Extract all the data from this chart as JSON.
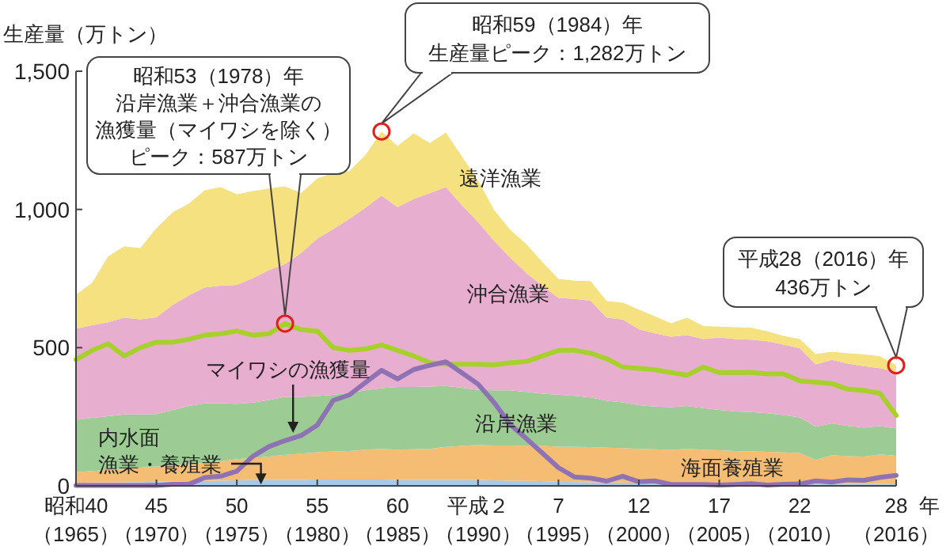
{
  "chart_data": {
    "type": "area",
    "stacked": true,
    "ylabel": "生産量（万トン）",
    "xlabel": "年",
    "categories": [
      "昭和40（1965）",
      null,
      null,
      null,
      null,
      "45（1970）",
      null,
      null,
      null,
      null,
      "50（1975）",
      null,
      null,
      null,
      null,
      "55（1980）",
      null,
      null,
      null,
      null,
      "60（1985）",
      null,
      null,
      null,
      null,
      "平成２（1990）",
      null,
      null,
      null,
      null,
      "7（1995）",
      null,
      null,
      null,
      null,
      "12（2000）",
      null,
      null,
      null,
      null,
      "17（2005）",
      null,
      null,
      null,
      null,
      "22（2010）",
      null,
      null,
      null,
      null,
      null,
      "28（2016）"
    ],
    "series": [
      {
        "name": "内水面漁業・養殖業",
        "color": "#a9c8e6",
        "values": [
          11,
          12,
          12,
          13,
          14,
          15,
          16,
          17,
          18,
          19,
          20,
          21,
          21,
          22,
          22,
          23,
          23,
          23,
          23,
          23,
          22,
          22,
          22,
          21,
          21,
          21,
          20,
          19,
          18,
          17,
          15,
          14,
          13,
          12,
          12,
          11,
          10,
          9,
          9,
          9,
          8,
          8,
          8,
          8,
          8,
          8,
          7,
          7,
          7,
          7,
          7,
          6
        ]
      },
      {
        "name": "海面養殖業",
        "color": "#f5bc74",
        "values": [
          38,
          42,
          45,
          50,
          52,
          55,
          58,
          62,
          65,
          70,
          77,
          80,
          85,
          90,
          95,
          99,
          101,
          103,
          108,
          111,
          109,
          110,
          112,
          120,
          124,
          127,
          126,
          127,
          127,
          127,
          127,
          127,
          127,
          126,
          125,
          123,
          122,
          121,
          125,
          122,
          121,
          118,
          117,
          115,
          113,
          111,
          87,
          104,
          100,
          99,
          107,
          103
        ]
      },
      {
        "name": "沿岸漁業",
        "color": "#9ccc93",
        "values": [
          190,
          192,
          195,
          195,
          192,
          190,
          200,
          210,
          215,
          210,
          200,
          200,
          205,
          210,
          205,
          203,
          205,
          210,
          215,
          220,
          227,
          226,
          225,
          220,
          210,
          199,
          200,
          200,
          195,
          190,
          188,
          185,
          180,
          170,
          165,
          158,
          155,
          155,
          155,
          150,
          146,
          143,
          142,
          140,
          135,
          129,
          120,
          115,
          110,
          105,
          102,
          99
        ]
      },
      {
        "name": "沖合漁業",
        "color": "#e8aecf",
        "values": [
          330,
          335,
          340,
          350,
          345,
          350,
          380,
          400,
          420,
          425,
          430,
          450,
          470,
          480,
          520,
          570,
          600,
          630,
          660,
          696,
          650,
          680,
          700,
          720,
          660,
          608,
          540,
          480,
          430,
          390,
          350,
          350,
          350,
          300,
          300,
          275,
          265,
          255,
          256,
          250,
          262,
          262,
          262,
          260,
          255,
          250,
          225,
          230,
          225,
          222,
          210,
          205
        ]
      },
      {
        "name": "遠洋漁業",
        "color": "#f5e17f",
        "values": [
          122,
          154,
          238,
          259,
          257,
          322,
          335,
          332,
          351,
          357,
          328,
          315,
          295,
          281,
          217,
          217,
          203,
          173,
          191,
          232,
          222,
          237,
          181,
          197,
          176,
          150,
          112,
          101,
          104,
          86,
          69,
          66,
          71,
          60,
          61,
          71,
          61,
          48,
          63,
          47,
          39,
          43,
          43,
          36,
          32,
          33,
          38,
          29,
          37,
          43,
          43,
          23
        ]
      },
      {
        "type": "line",
        "color": "#a8d02a",
        "values": [
          457,
          490,
          514,
          470,
          500,
          520,
          520,
          530,
          545,
          550,
          560,
          545,
          550,
          587,
          565,
          560,
          500,
          490,
          495,
          510,
          490,
          470,
          445,
          440,
          440,
          440,
          438,
          445,
          450,
          470,
          490,
          490,
          480,
          460,
          430,
          425,
          420,
          410,
          400,
          430,
          410,
          410,
          410,
          405,
          405,
          380,
          375,
          370,
          350,
          345,
          335,
          255
        ]
      },
      {
        "name": "マイワシの漁獲量",
        "type": "line",
        "color": "#8e72b4",
        "values": [
          1,
          1,
          1,
          1,
          1,
          2,
          6,
          6,
          30,
          35,
          53,
          107,
          142,
          164,
          182,
          220,
          309,
          329,
          374,
          418,
          387,
          421,
          436,
          449,
          409,
          368,
          301,
          222,
          171,
          119,
          66,
          32,
          28,
          17,
          35,
          15,
          18,
          5,
          5,
          5,
          3,
          5,
          8,
          3,
          6,
          7,
          18,
          14,
          22,
          20,
          31,
          38
        ]
      }
    ],
    "ylim": [
      0,
      1500
    ],
    "yticks": [
      0,
      {
        "value": 500,
        "label": "500"
      },
      {
        "value": 1000,
        "label": "1,000"
      },
      {
        "value": 1500,
        "label": "1,500"
      }
    ],
    "grid": false,
    "annotations": [
      "昭和53（1978）年沿岸漁業＋沖合漁業の漁獲量（マイワシを除く）ピーク：587万トン",
      "昭和59（1984）年生産量ピーク：1,282万トン",
      "平成28（2016）年436万トン"
    ]
  }
}
